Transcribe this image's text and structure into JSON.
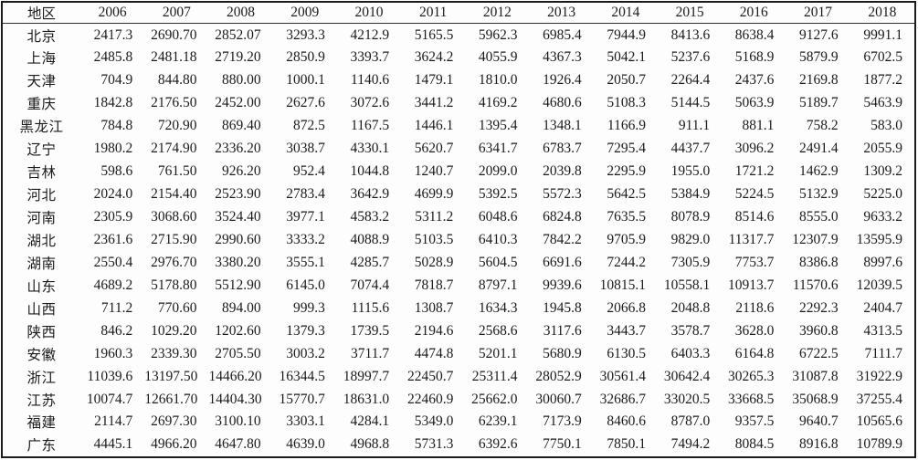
{
  "table": {
    "columns": [
      "地区",
      "2006",
      "2007",
      "2008",
      "2009",
      "2010",
      "2011",
      "2012",
      "2013",
      "2014",
      "2015",
      "2016",
      "2017",
      "2018"
    ],
    "rows": [
      {
        "region": "北京",
        "values": [
          "2417.3",
          "2690.70",
          "2852.07",
          "3293.3",
          "4212.9",
          "5165.5",
          "5962.3",
          "6985.4",
          "7944.9",
          "8413.6",
          "8638.4",
          "9127.6",
          "9991.1"
        ]
      },
      {
        "region": "上海",
        "values": [
          "2485.8",
          "2481.18",
          "2719.20",
          "2850.9",
          "3393.7",
          "3624.2",
          "4055.9",
          "4367.3",
          "5042.1",
          "5237.6",
          "5168.9",
          "5879.9",
          "6702.5"
        ]
      },
      {
        "region": "天津",
        "values": [
          "704.9",
          "844.80",
          "880.00",
          "1000.1",
          "1140.6",
          "1479.1",
          "1810.0",
          "1926.4",
          "2050.7",
          "2264.4",
          "2437.6",
          "2169.8",
          "1877.2"
        ]
      },
      {
        "region": "重庆",
        "values": [
          "1842.8",
          "2176.50",
          "2452.00",
          "2627.6",
          "3072.6",
          "3441.2",
          "4169.2",
          "4680.6",
          "5108.3",
          "5144.5",
          "5063.9",
          "5189.7",
          "5463.9"
        ]
      },
      {
        "region": "黑龙江",
        "values": [
          "784.8",
          "720.90",
          "869.40",
          "872.5",
          "1167.5",
          "1446.1",
          "1395.4",
          "1348.1",
          "1166.9",
          "911.1",
          "881.1",
          "758.2",
          "583.0"
        ]
      },
      {
        "region": "辽宁",
        "values": [
          "1980.2",
          "2174.90",
          "2336.20",
          "3038.7",
          "4330.1",
          "5620.7",
          "6341.7",
          "6783.7",
          "7295.4",
          "4437.7",
          "3096.2",
          "2491.4",
          "2055.9"
        ]
      },
      {
        "region": "吉林",
        "values": [
          "598.6",
          "761.50",
          "926.20",
          "952.4",
          "1044.8",
          "1240.7",
          "2099.0",
          "2039.8",
          "2295.9",
          "1955.0",
          "1721.2",
          "1462.9",
          "1309.2"
        ]
      },
      {
        "region": "河北",
        "values": [
          "2024.0",
          "2154.40",
          "2523.90",
          "2783.4",
          "3642.9",
          "4699.9",
          "5392.5",
          "5572.3",
          "5642.5",
          "5384.9",
          "5224.5",
          "5132.9",
          "5225.0"
        ]
      },
      {
        "region": "河南",
        "values": [
          "2305.9",
          "3068.60",
          "3524.40",
          "3977.1",
          "4583.2",
          "5311.2",
          "6048.6",
          "6824.8",
          "7635.5",
          "8078.9",
          "8514.6",
          "8555.0",
          "9633.2"
        ]
      },
      {
        "region": "湖北",
        "values": [
          "2361.6",
          "2715.90",
          "2990.60",
          "3333.2",
          "4088.9",
          "5103.5",
          "6410.3",
          "7842.2",
          "9705.9",
          "9829.0",
          "11317.7",
          "12307.9",
          "13595.9"
        ]
      },
      {
        "region": "湖南",
        "values": [
          "2550.4",
          "2976.70",
          "3380.20",
          "3555.1",
          "4285.7",
          "5028.9",
          "5604.5",
          "6691.6",
          "7244.2",
          "7305.9",
          "7753.7",
          "8386.8",
          "8997.6"
        ]
      },
      {
        "region": "山东",
        "values": [
          "4689.2",
          "5178.80",
          "5512.90",
          "6145.0",
          "7074.4",
          "7818.7",
          "8797.1",
          "9939.6",
          "10815.1",
          "10558.1",
          "10913.7",
          "11570.6",
          "12039.5"
        ]
      },
      {
        "region": "山西",
        "values": [
          "711.2",
          "770.60",
          "894.00",
          "999.3",
          "1115.6",
          "1308.7",
          "1634.3",
          "1945.8",
          "2066.8",
          "2048.8",
          "2118.6",
          "2292.3",
          "2404.7"
        ]
      },
      {
        "region": "陕西",
        "values": [
          "846.2",
          "1029.20",
          "1202.60",
          "1379.3",
          "1739.5",
          "2194.6",
          "2568.6",
          "3117.6",
          "3443.7",
          "3578.7",
          "3628.0",
          "3960.8",
          "4313.5"
        ]
      },
      {
        "region": "安徽",
        "values": [
          "1960.3",
          "2339.30",
          "2705.50",
          "3003.2",
          "3711.7",
          "4474.8",
          "5201.1",
          "5680.9",
          "6130.5",
          "6403.3",
          "6164.8",
          "6722.5",
          "7111.7"
        ]
      },
      {
        "region": "浙江",
        "values": [
          "11039.6",
          "13197.50",
          "14466.20",
          "16344.5",
          "18997.7",
          "22450.7",
          "25311.4",
          "28052.9",
          "30561.4",
          "30642.4",
          "30265.3",
          "31087.8",
          "31922.9"
        ]
      },
      {
        "region": "江苏",
        "values": [
          "10074.7",
          "12661.70",
          "14404.30",
          "15770.7",
          "18631.0",
          "22460.9",
          "25662.0",
          "30060.7",
          "32686.7",
          "33020.5",
          "33668.5",
          "35068.9",
          "37255.4"
        ]
      },
      {
        "region": "福建",
        "values": [
          "2114.7",
          "2697.30",
          "3100.10",
          "3303.1",
          "4284.1",
          "5349.0",
          "6239.1",
          "7173.9",
          "8460.6",
          "8787.0",
          "9357.5",
          "9640.7",
          "10565.6"
        ]
      },
      {
        "region": "广东",
        "values": [
          "4445.1",
          "4966.20",
          "4647.80",
          "4639.0",
          "4968.8",
          "5731.3",
          "6392.6",
          "7750.1",
          "7850.1",
          "7494.2",
          "8084.5",
          "8916.8",
          "10789.9"
        ]
      }
    ]
  }
}
